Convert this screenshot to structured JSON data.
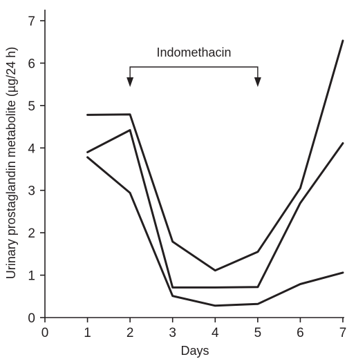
{
  "chart_data": {
    "type": "line",
    "xlabel": "Days",
    "ylabel": "Urinary prostaglandin metabolite (µg/24 h)",
    "xlim": [
      0,
      7
    ],
    "ylim": [
      0,
      7
    ],
    "x_ticks": [
      0,
      1,
      2,
      3,
      4,
      5,
      6,
      7
    ],
    "y_ticks": [
      0,
      1,
      2,
      3,
      4,
      5,
      6,
      7
    ],
    "grid": false,
    "legend": "none",
    "x": [
      1,
      2,
      3,
      4,
      5,
      6,
      7
    ],
    "series": [
      {
        "values": [
          4.78,
          4.79,
          1.79,
          1.11,
          1.55,
          3.05,
          6.53
        ]
      },
      {
        "values": [
          3.9,
          4.42,
          0.71,
          0.71,
          0.72,
          2.7,
          4.11
        ]
      },
      {
        "values": [
          3.78,
          2.94,
          0.51,
          0.28,
          0.32,
          0.79,
          1.06
        ]
      }
    ],
    "annotation": {
      "text": "Indomethacin",
      "x_start": 2,
      "x_end": 5
    }
  },
  "colors": {
    "ink": "#231f20",
    "background": "#ffffff"
  }
}
